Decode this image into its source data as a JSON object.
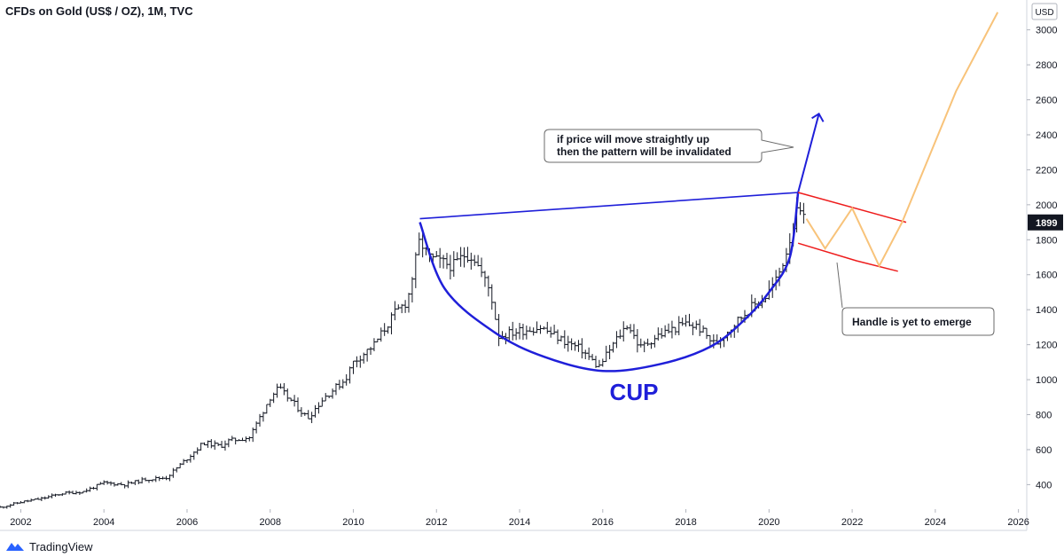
{
  "header": {
    "title": "CFDs on Gold (US$ / OZ), 1M, TVC"
  },
  "price_axis": {
    "currency_label": "USD",
    "ticks": [
      "400",
      "600",
      "800",
      "1000",
      "1200",
      "1400",
      "1600",
      "1800",
      "2000",
      "2200",
      "2400",
      "2600",
      "2800",
      "3000"
    ],
    "last_price_label": "1899"
  },
  "time_axis": {
    "ticks": [
      "2002",
      "2004",
      "2006",
      "2008",
      "2010",
      "2012",
      "2014",
      "2016",
      "2018",
      "2020",
      "2022",
      "2024",
      "2026"
    ]
  },
  "annotations": {
    "cup_label": "CUP",
    "callout_invalidation_line1": "if price will move straightly up",
    "callout_invalidation_line2": "then the pattern will be invalidated",
    "callout_handle": "Handle is yet to emerge"
  },
  "colors": {
    "cup": "#1f1fd9",
    "channel": "#ee1c1c",
    "projection": "#f8c37a",
    "bars": "#131722",
    "last_price_bg": "#131722"
  },
  "brand": {
    "name": "TradingView"
  },
  "chart_data": {
    "type": "line",
    "title": "CFDs on Gold (US$ / OZ), 1M, TVC",
    "symbol": "TVC:GOLD",
    "interval": "1M",
    "unit": "USD",
    "xlim": [
      2001.5,
      2026.2
    ],
    "ylim": [
      260,
      3130
    ],
    "y_ticks": [
      400,
      600,
      800,
      1000,
      1200,
      1400,
      1600,
      1800,
      2000,
      2200,
      2400,
      2600,
      2800,
      3000
    ],
    "x_ticks": [
      2002,
      2004,
      2006,
      2008,
      2010,
      2012,
      2014,
      2016,
      2018,
      2020,
      2022,
      2024,
      2026
    ],
    "grid": false,
    "last_price": 1899,
    "series": [
      {
        "style": "ohlc",
        "x": [
          2001.5,
          2002.0,
          2002.5,
          2003.0,
          2003.5,
          2004.0,
          2004.5,
          2005.0,
          2005.5,
          2006.0,
          2006.4,
          2006.8,
          2007.0,
          2007.5,
          2008.0,
          2008.2,
          2008.5,
          2008.9,
          2009.3,
          2009.8,
          2010.0,
          2010.5,
          2011.0,
          2011.3,
          2011.6,
          2011.8,
          2012.0,
          2012.4,
          2012.7,
          2012.9,
          2013.3,
          2013.5,
          2014.0,
          2014.5,
          2015.0,
          2015.5,
          2015.9,
          2016.3,
          2016.6,
          2016.9,
          2017.3,
          2017.7,
          2018.0,
          2018.3,
          2018.7,
          2019.0,
          2019.5,
          2019.9,
          2020.2,
          2020.4,
          2020.6,
          2020.7,
          2020.85
        ],
        "y": [
          270,
          300,
          320,
          350,
          360,
          410,
          400,
          430,
          440,
          550,
          640,
          620,
          650,
          670,
          900,
          950,
          880,
          780,
          900,
          1000,
          1100,
          1200,
          1380,
          1450,
          1800,
          1700,
          1680,
          1650,
          1720,
          1700,
          1500,
          1250,
          1280,
          1300,
          1230,
          1170,
          1070,
          1220,
          1320,
          1180,
          1250,
          1290,
          1320,
          1300,
          1200,
          1280,
          1400,
          1470,
          1580,
          1720,
          1900,
          1970,
          1899
        ]
      }
    ],
    "cup_curve": {
      "x": [
        2011.6,
        2012.2,
        2013.4,
        2014.6,
        2016.0,
        2017.4,
        2018.6,
        2019.4,
        2020.0,
        2020.5,
        2020.7
      ],
      "y": [
        1900,
        1520,
        1270,
        1130,
        1050,
        1090,
        1190,
        1340,
        1500,
        1700,
        2070
      ]
    },
    "rim_line": {
      "x": [
        2011.6,
        2020.7
      ],
      "y": [
        1920,
        2070
      ]
    },
    "breakout_arrow": {
      "x": [
        2020.7,
        2021.2
      ],
      "y": [
        2070,
        2520
      ]
    },
    "channel_upper": {
      "x": [
        2020.7,
        2023.3
      ],
      "y": [
        2070,
        1900
      ]
    },
    "channel_lower": {
      "x": [
        2020.7,
        2022.1,
        2023.1
      ],
      "y": [
        1780,
        1680,
        1620
      ]
    },
    "projection": {
      "x": [
        2020.9,
        2021.35,
        2022.0,
        2022.65,
        2023.2,
        2024.5,
        2025.5
      ],
      "y": [
        1920,
        1750,
        1980,
        1650,
        1900,
        2650,
        3100
      ]
    }
  }
}
